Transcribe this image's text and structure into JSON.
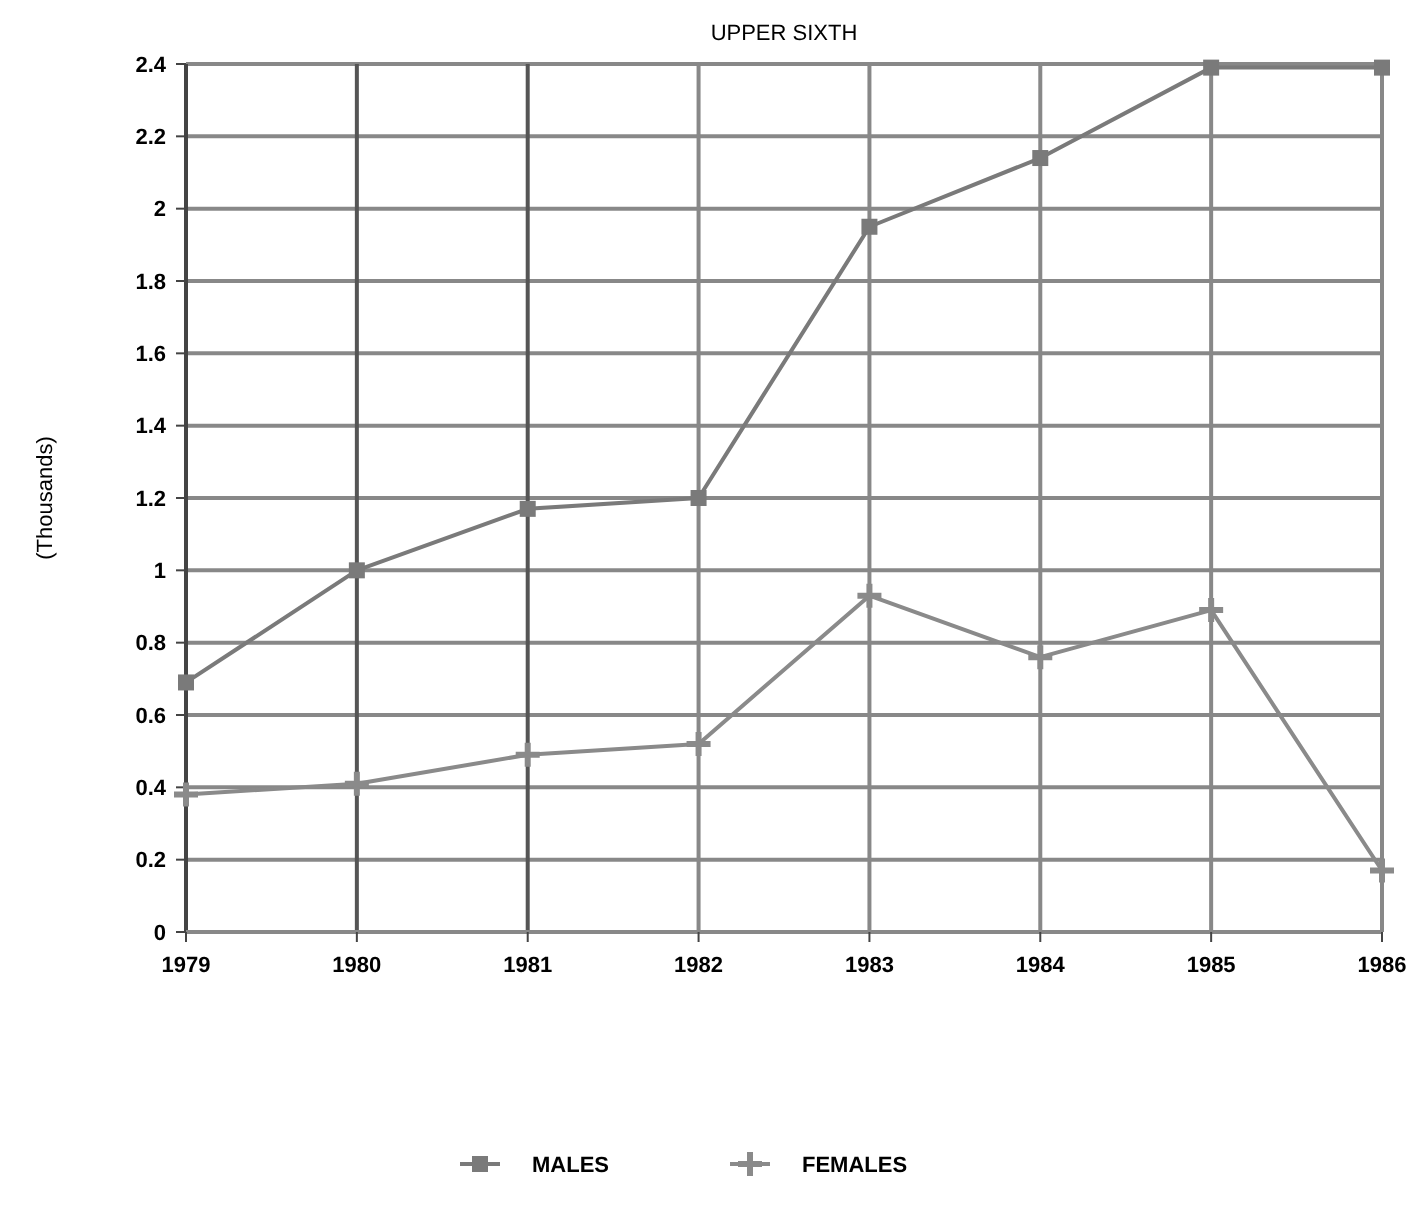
{
  "chart_data": {
    "type": "line",
    "title": "UPPER SIXTH",
    "ylabel": "(Thousands)",
    "categories": [
      "1979",
      "1980",
      "1981",
      "1982",
      "1983",
      "1984",
      "1985",
      "1986"
    ],
    "series": [
      {
        "name": "MALES",
        "color": "#7a7a7a",
        "marker": "square",
        "values": [
          0.69,
          1.0,
          1.17,
          1.2,
          1.95,
          2.14,
          2.39,
          2.39
        ]
      },
      {
        "name": "FEMALES",
        "color": "#8a8a8a",
        "marker": "cross",
        "values": [
          0.38,
          0.41,
          0.49,
          0.52,
          0.93,
          0.76,
          0.89,
          0.17
        ]
      }
    ],
    "ylim": [
      0,
      2.4
    ],
    "yticks": [
      0,
      0.2,
      0.4,
      0.6,
      0.8,
      1,
      1.2,
      1.4,
      1.6,
      1.8,
      2,
      2.2,
      2.4
    ],
    "grid": true,
    "legend": "bottom",
    "line_style": "solid"
  }
}
